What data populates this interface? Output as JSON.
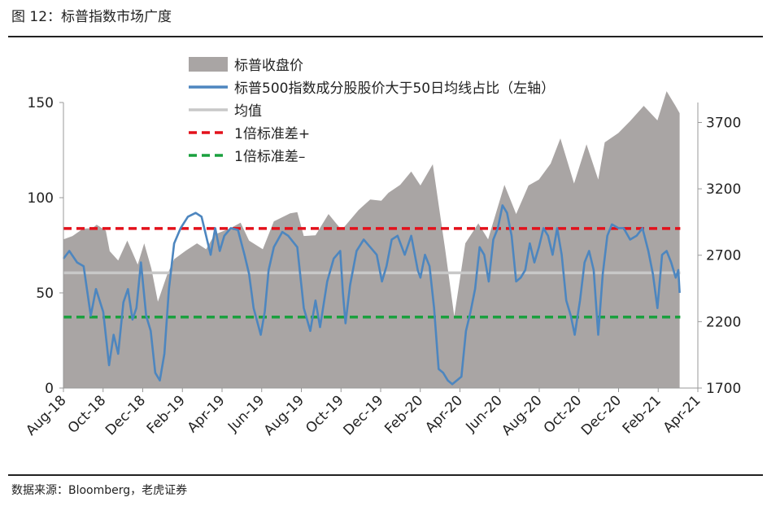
{
  "figure_title": "图 12：标普指数市场广度",
  "source": "数据来源：Bloomberg，老虎证券",
  "chart_data": {
    "type": "area+line",
    "x_tick_labels": [
      "Aug-18",
      "Oct-18",
      "Dec-18",
      "Feb-19",
      "Apr-19",
      "Jun-19",
      "Aug-19",
      "Oct-19",
      "Dec-19",
      "Feb-20",
      "Apr-20",
      "Jun-20",
      "Aug-20",
      "Oct-20",
      "Dec-20",
      "Feb-21",
      "Apr-21"
    ],
    "x_range": [
      "2018-08-01",
      "2021-04-01"
    ],
    "y_left": {
      "range": [
        0,
        150
      ],
      "ticks": [
        "0",
        "50",
        "100",
        "150"
      ]
    },
    "y_right": {
      "range": [
        1700,
        3850
      ],
      "ticks": [
        "1700",
        "2200",
        "2700",
        "3200",
        "3700"
      ]
    },
    "legend_position": "top",
    "series": [
      {
        "name": "标普收盘价",
        "axis": "right",
        "render": "area",
        "color": "#a9a5a4",
        "points": [
          [
            "2018-08-01",
            2820
          ],
          [
            "2018-08-15",
            2845
          ],
          [
            "2018-08-31",
            2900
          ],
          [
            "2018-09-15",
            2905
          ],
          [
            "2018-09-21",
            2930
          ],
          [
            "2018-10-05",
            2885
          ],
          [
            "2018-10-11",
            2730
          ],
          [
            "2018-10-24",
            2660
          ],
          [
            "2018-11-07",
            2810
          ],
          [
            "2018-11-23",
            2630
          ],
          [
            "2018-12-03",
            2790
          ],
          [
            "2018-12-14",
            2600
          ],
          [
            "2018-12-24",
            2350
          ],
          [
            "2019-01-07",
            2550
          ],
          [
            "2019-01-18",
            2670
          ],
          [
            "2019-02-05",
            2735
          ],
          [
            "2019-02-22",
            2790
          ],
          [
            "2019-03-08",
            2745
          ],
          [
            "2019-03-21",
            2855
          ],
          [
            "2019-04-15",
            2905
          ],
          [
            "2019-04-30",
            2945
          ],
          [
            "2019-05-13",
            2810
          ],
          [
            "2019-06-03",
            2745
          ],
          [
            "2019-06-20",
            2955
          ],
          [
            "2019-07-15",
            3015
          ],
          [
            "2019-07-26",
            3025
          ],
          [
            "2019-08-05",
            2845
          ],
          [
            "2019-08-23",
            2850
          ],
          [
            "2019-09-12",
            3010
          ],
          [
            "2019-10-02",
            2890
          ],
          [
            "2019-10-28",
            3040
          ],
          [
            "2019-11-15",
            3120
          ],
          [
            "2019-12-02",
            3110
          ],
          [
            "2019-12-13",
            3170
          ],
          [
            "2019-12-31",
            3230
          ],
          [
            "2020-01-17",
            3330
          ],
          [
            "2020-01-31",
            3225
          ],
          [
            "2020-02-19",
            3385
          ],
          [
            "2020-02-27",
            3115
          ],
          [
            "2020-03-09",
            2745
          ],
          [
            "2020-03-23",
            2240
          ],
          [
            "2020-04-09",
            2790
          ],
          [
            "2020-04-29",
            2940
          ],
          [
            "2020-05-14",
            2820
          ],
          [
            "2020-06-08",
            3230
          ],
          [
            "2020-06-26",
            3010
          ],
          [
            "2020-07-15",
            3225
          ],
          [
            "2020-07-31",
            3270
          ],
          [
            "2020-08-18",
            3390
          ],
          [
            "2020-09-02",
            3580
          ],
          [
            "2020-09-23",
            3240
          ],
          [
            "2020-10-12",
            3535
          ],
          [
            "2020-10-30",
            3270
          ],
          [
            "2020-11-09",
            3550
          ],
          [
            "2020-11-30",
            3620
          ],
          [
            "2020-12-18",
            3710
          ],
          [
            "2021-01-08",
            3825
          ],
          [
            "2021-01-29",
            3715
          ],
          [
            "2021-02-12",
            3935
          ],
          [
            "2021-02-25",
            3830
          ],
          [
            "2021-03-04",
            3770
          ]
        ]
      },
      {
        "name": "标普500指数成分股股价大于50日均线占比（左轴）",
        "axis": "left",
        "render": "line",
        "color": "#4d86bf",
        "points": [
          [
            "2018-08-01",
            68
          ],
          [
            "2018-08-10",
            72
          ],
          [
            "2018-08-22",
            66
          ],
          [
            "2018-09-01",
            64
          ],
          [
            "2018-09-12",
            38
          ],
          [
            "2018-09-20",
            52
          ],
          [
            "2018-10-01",
            40
          ],
          [
            "2018-10-10",
            12
          ],
          [
            "2018-10-17",
            28
          ],
          [
            "2018-10-24",
            18
          ],
          [
            "2018-11-01",
            45
          ],
          [
            "2018-11-08",
            52
          ],
          [
            "2018-11-15",
            36
          ],
          [
            "2018-11-21",
            42
          ],
          [
            "2018-11-28",
            66
          ],
          [
            "2018-12-06",
            38
          ],
          [
            "2018-12-13",
            30
          ],
          [
            "2018-12-20",
            8
          ],
          [
            "2018-12-27",
            4
          ],
          [
            "2019-01-03",
            18
          ],
          [
            "2019-01-10",
            52
          ],
          [
            "2019-01-18",
            76
          ],
          [
            "2019-01-28",
            84
          ],
          [
            "2019-02-08",
            90
          ],
          [
            "2019-02-20",
            92
          ],
          [
            "2019-03-01",
            90
          ],
          [
            "2019-03-08",
            80
          ],
          [
            "2019-03-15",
            70
          ],
          [
            "2019-03-22",
            84
          ],
          [
            "2019-03-29",
            72
          ],
          [
            "2019-04-05",
            80
          ],
          [
            "2019-04-15",
            84
          ],
          [
            "2019-04-26",
            83
          ],
          [
            "2019-05-06",
            70
          ],
          [
            "2019-05-13",
            60
          ],
          [
            "2019-05-20",
            42
          ],
          [
            "2019-05-31",
            28
          ],
          [
            "2019-06-06",
            40
          ],
          [
            "2019-06-12",
            62
          ],
          [
            "2019-06-20",
            74
          ],
          [
            "2019-07-03",
            82
          ],
          [
            "2019-07-12",
            80
          ],
          [
            "2019-07-26",
            74
          ],
          [
            "2019-08-05",
            42
          ],
          [
            "2019-08-15",
            30
          ],
          [
            "2019-08-23",
            46
          ],
          [
            "2019-08-30",
            32
          ],
          [
            "2019-09-10",
            56
          ],
          [
            "2019-09-20",
            68
          ],
          [
            "2019-09-30",
            72
          ],
          [
            "2019-10-04",
            50
          ],
          [
            "2019-10-08",
            34
          ],
          [
            "2019-10-15",
            54
          ],
          [
            "2019-10-25",
            72
          ],
          [
            "2019-11-05",
            78
          ],
          [
            "2019-11-15",
            74
          ],
          [
            "2019-11-25",
            70
          ],
          [
            "2019-12-03",
            56
          ],
          [
            "2019-12-10",
            64
          ],
          [
            "2019-12-18",
            78
          ],
          [
            "2019-12-27",
            80
          ],
          [
            "2020-01-07",
            70
          ],
          [
            "2020-01-17",
            80
          ],
          [
            "2020-01-27",
            62
          ],
          [
            "2020-01-31",
            58
          ],
          [
            "2020-02-07",
            70
          ],
          [
            "2020-02-14",
            64
          ],
          [
            "2020-02-21",
            42
          ],
          [
            "2020-02-28",
            10
          ],
          [
            "2020-03-06",
            8
          ],
          [
            "2020-03-13",
            4
          ],
          [
            "2020-03-20",
            2
          ],
          [
            "2020-03-27",
            4
          ],
          [
            "2020-04-03",
            6
          ],
          [
            "2020-04-10",
            30
          ],
          [
            "2020-04-17",
            40
          ],
          [
            "2020-04-24",
            52
          ],
          [
            "2020-05-01",
            74
          ],
          [
            "2020-05-08",
            70
          ],
          [
            "2020-05-15",
            56
          ],
          [
            "2020-05-22",
            78
          ],
          [
            "2020-05-29",
            84
          ],
          [
            "2020-06-05",
            96
          ],
          [
            "2020-06-12",
            92
          ],
          [
            "2020-06-19",
            80
          ],
          [
            "2020-06-26",
            56
          ],
          [
            "2020-07-03",
            58
          ],
          [
            "2020-07-10",
            62
          ],
          [
            "2020-07-17",
            76
          ],
          [
            "2020-07-24",
            66
          ],
          [
            "2020-07-31",
            74
          ],
          [
            "2020-08-07",
            84
          ],
          [
            "2020-08-14",
            80
          ],
          [
            "2020-08-21",
            70
          ],
          [
            "2020-08-28",
            84
          ],
          [
            "2020-09-04",
            70
          ],
          [
            "2020-09-11",
            46
          ],
          [
            "2020-09-18",
            38
          ],
          [
            "2020-09-24",
            28
          ],
          [
            "2020-10-02",
            46
          ],
          [
            "2020-10-09",
            66
          ],
          [
            "2020-10-16",
            72
          ],
          [
            "2020-10-23",
            62
          ],
          [
            "2020-10-30",
            28
          ],
          [
            "2020-11-06",
            60
          ],
          [
            "2020-11-13",
            80
          ],
          [
            "2020-11-20",
            86
          ],
          [
            "2020-11-30",
            84
          ],
          [
            "2020-12-08",
            84
          ],
          [
            "2020-12-18",
            78
          ],
          [
            "2020-12-28",
            80
          ],
          [
            "2021-01-06",
            84
          ],
          [
            "2021-01-15",
            72
          ],
          [
            "2021-01-22",
            60
          ],
          [
            "2021-01-29",
            42
          ],
          [
            "2021-02-05",
            70
          ],
          [
            "2021-02-12",
            72
          ],
          [
            "2021-02-19",
            66
          ],
          [
            "2021-02-26",
            58
          ],
          [
            "2021-03-02",
            62
          ],
          [
            "2021-03-04",
            50
          ]
        ]
      },
      {
        "name": "均值",
        "axis": "left",
        "render": "hline",
        "color": "#c8c8c8",
        "value": 60.5
      },
      {
        "name": "1倍标准差+",
        "axis": "left",
        "render": "hline-dashed",
        "color": "#e3111b",
        "value": 83.8
      },
      {
        "name": "1倍标准差–",
        "axis": "left",
        "render": "hline-dashed",
        "color": "#1aa03e",
        "value": 37.3
      }
    ]
  }
}
